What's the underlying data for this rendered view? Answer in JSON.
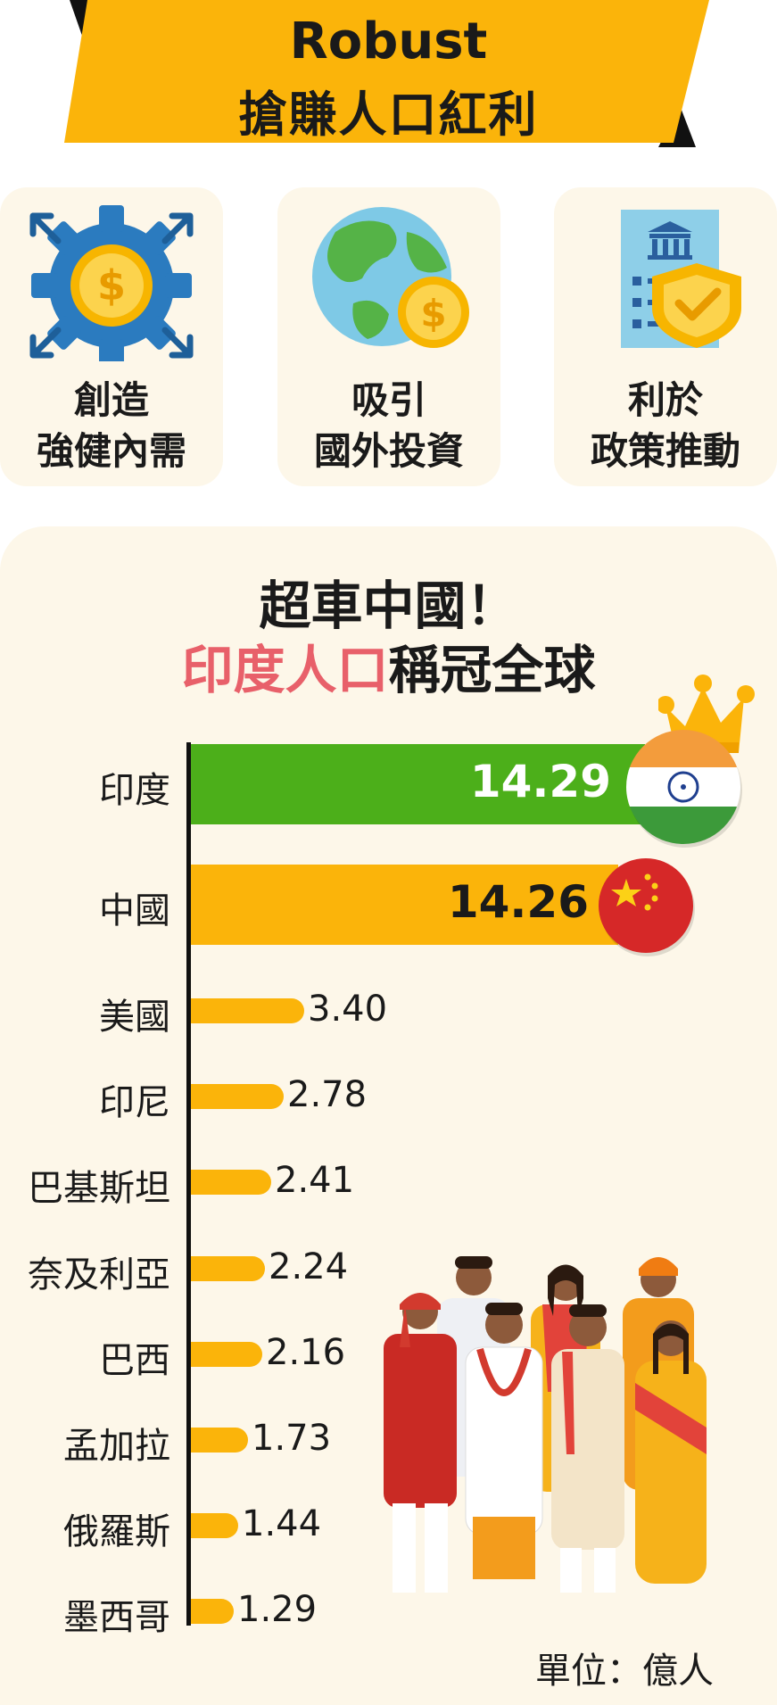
{
  "banner": {
    "line1": "Robust",
    "line2": "搶賺人口紅利",
    "bg_color": "#fbb40a"
  },
  "cards": [
    {
      "line1": "創造",
      "line2": "強健內需",
      "icon": "gear-coin-icon"
    },
    {
      "line1": "吸引",
      "line2": "國外投資",
      "icon": "globe-coin-icon"
    },
    {
      "line1": "利於",
      "line2": "政策推動",
      "icon": "government-shield-icon"
    }
  ],
  "chart_title": {
    "line1": "超車中國！",
    "line2_highlight": "印度人口",
    "line2_rest": "稱冠全球",
    "highlight_color": "#e8606a"
  },
  "chart_data": {
    "type": "bar",
    "orientation": "horizontal",
    "unit_label": "單位：億人",
    "categories": [
      "印度",
      "中國",
      "美國",
      "印尼",
      "巴基斯坦",
      "奈及利亞",
      "巴西",
      "孟加拉",
      "俄羅斯",
      "墨西哥"
    ],
    "values": [
      14.29,
      14.26,
      3.4,
      2.78,
      2.41,
      2.24,
      2.16,
      1.73,
      1.44,
      1.29
    ],
    "labels": [
      "14.29",
      "14.26",
      "3.40",
      "2.78",
      "2.41",
      "2.24",
      "2.16",
      "1.73",
      "1.44",
      "1.29"
    ],
    "colors": [
      "#4caf1a",
      "#fbb40a",
      "#fbb40a",
      "#fbb40a",
      "#fbb40a",
      "#fbb40a",
      "#fbb40a",
      "#fbb40a",
      "#fbb40a",
      "#fbb40a"
    ],
    "flags": [
      "india-flag-icon",
      "china-flag-icon"
    ],
    "grid": false
  },
  "decor": {
    "crown": "crown-icon",
    "people": "people-illustration-icon"
  }
}
